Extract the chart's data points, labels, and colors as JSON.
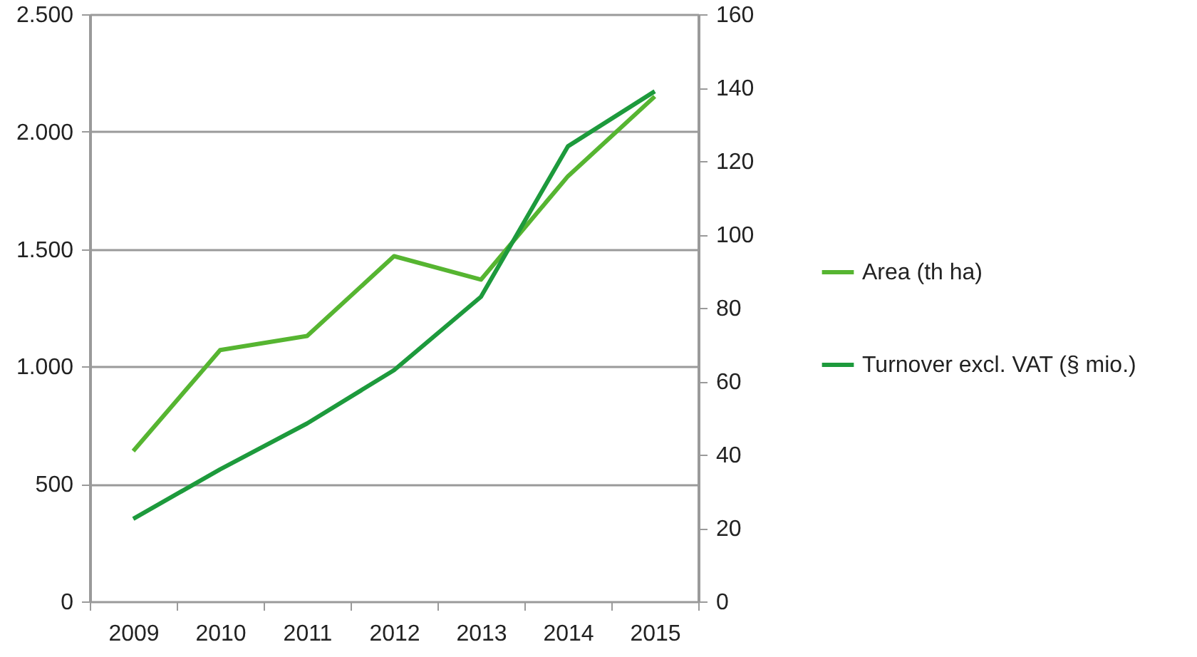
{
  "chart_data": {
    "type": "line",
    "categories": [
      "2009",
      "2010",
      "2011",
      "2012",
      "2013",
      "2014",
      "2015"
    ],
    "series": [
      {
        "name": "Area (th ha)",
        "color": "#56b531",
        "values": [
          640,
          1070,
          1130,
          1470,
          1370,
          1810,
          2150
        ]
      },
      {
        "name": "Turnover excl. VAT (§ mio.)",
        "color": "#1d9a3c",
        "axis": "y2",
        "values": [
          22.5,
          36,
          48.5,
          63,
          83,
          124,
          139
        ]
      }
    ],
    "ylim": [
      0,
      2500
    ],
    "yticks": [
      0,
      500,
      {
        "value": 1000,
        "label": "1.000"
      },
      {
        "value": 1500,
        "label": "1.500"
      },
      {
        "value": 2000,
        "label": "2.000"
      },
      {
        "value": 2500,
        "label": "2.500"
      }
    ],
    "y2lim": [
      0,
      160
    ],
    "y2ticks": [
      0,
      20,
      40,
      60,
      80,
      100,
      120,
      140,
      160
    ],
    "grid": "y",
    "legend": "right",
    "line_style": "solid"
  }
}
